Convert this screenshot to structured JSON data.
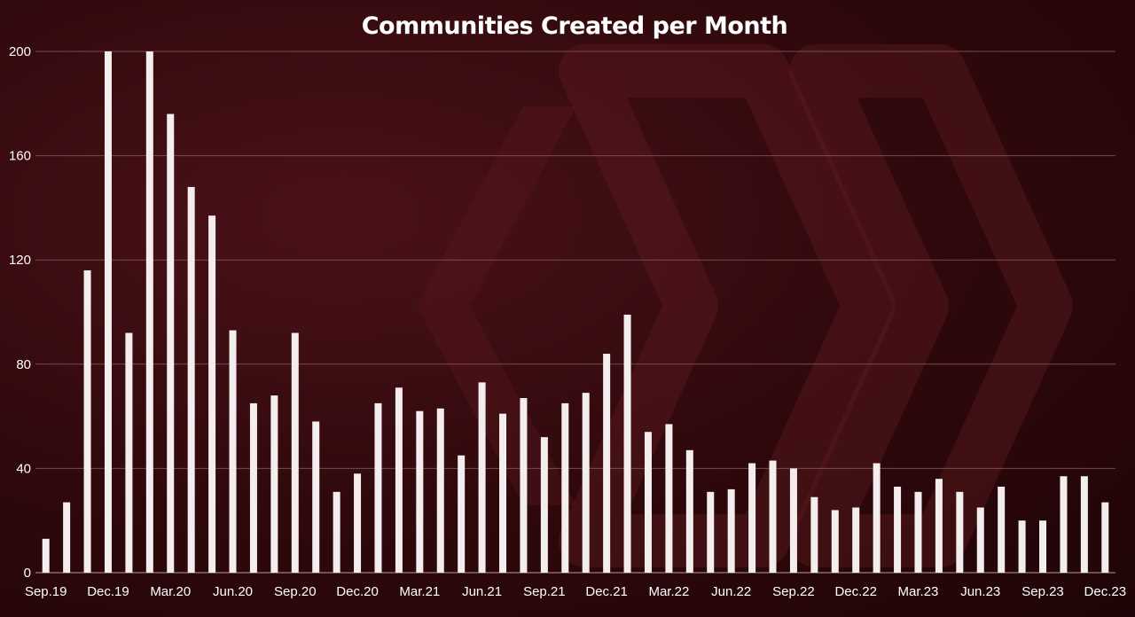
{
  "chart_data": {
    "type": "bar",
    "title": "Communities Created per Month",
    "xlabel": "",
    "ylabel": "",
    "ylim": [
      0,
      200
    ],
    "yticks": [
      0,
      40,
      80,
      120,
      160,
      200
    ],
    "grid": true,
    "legend": "none",
    "colors": {
      "bar": "#f4eded",
      "background": "#3a0c10",
      "grid": "#8a5a5d",
      "text": "#ffffff"
    },
    "categories": [
      "Sep.19",
      "Oct.19",
      "Nov.19",
      "Dec.19",
      "Jan.20",
      "Feb.20",
      "Mar.20",
      "Apr.20",
      "May.20",
      "Jun.20",
      "Jul.20",
      "Aug.20",
      "Sep.20",
      "Oct.20",
      "Nov.20",
      "Dec.20",
      "Jan.21",
      "Feb.21",
      "Mar.21",
      "Apr.21",
      "May.21",
      "Jun.21",
      "Jul.21",
      "Aug.21",
      "Sep.21",
      "Oct.21",
      "Nov.21",
      "Dec.21",
      "Jan.22",
      "Feb.22",
      "Mar.22",
      "Apr.22",
      "May.22",
      "Jun.22",
      "Jul.22",
      "Aug.22",
      "Sep.22",
      "Oct.22",
      "Nov.22",
      "Dec.22",
      "Jan.23",
      "Feb.23",
      "Mar.23",
      "Apr.23",
      "May.23",
      "Jun.23",
      "Jul.23",
      "Aug.23",
      "Sep.23",
      "Oct.23",
      "Nov.23",
      "Dec.23"
    ],
    "x_tick_labels": [
      "Sep.19",
      "Dec.19",
      "Mar.20",
      "Jun.20",
      "Sep.20",
      "Dec.20",
      "Mar.21",
      "Jun.21",
      "Sep.21",
      "Dec.21",
      "Mar.22",
      "Jun.22",
      "Sep.22",
      "Dec.22",
      "Mar.23",
      "Jun.23",
      "Sep.23",
      "Dec.23"
    ],
    "values": [
      13,
      27,
      116,
      200,
      92,
      200,
      176,
      148,
      137,
      93,
      65,
      68,
      92,
      58,
      31,
      38,
      65,
      71,
      62,
      63,
      45,
      73,
      61,
      67,
      52,
      65,
      69,
      84,
      99,
      54,
      57,
      47,
      31,
      32,
      42,
      43,
      40,
      29,
      24,
      25,
      42,
      33,
      31,
      36,
      31,
      25,
      33,
      20,
      20,
      37,
      37,
      27
    ]
  }
}
